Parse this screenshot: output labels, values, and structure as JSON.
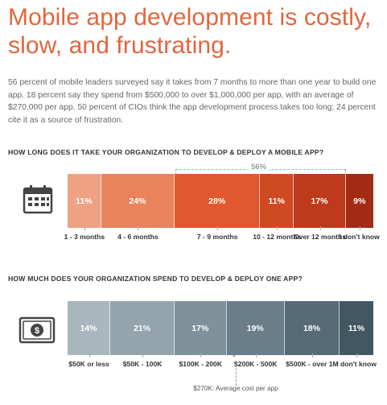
{
  "title": "Mobile app development is costly, slow, and frustrating.",
  "intro": "56 percent of mobile leaders surveyed say it takes from 7 months to more than one year to build one app. 18 percent say they spend from $500,000 to over $1,000,000 per app, with an average of $270,000 per app. 50 percent of CIOs think the app development process takes too long; 24 percent cite it as a source of frustration.",
  "icons": {
    "time": "calendar-icon",
    "cost": "money-icon"
  },
  "chart_data": [
    {
      "type": "bar",
      "orientation": "horizontal-stacked",
      "title": "HOW LONG DOES IT TAKE YOUR ORGANIZATION TO DEVELOP & DEPLOY A MOBILE APP?",
      "categories": [
        "1 - 3 months",
        "4 - 6 months",
        "7 - 9 months",
        "10 - 12 months",
        "Over 12 months",
        "I don't know"
      ],
      "values": [
        11,
        24,
        28,
        11,
        17,
        9
      ],
      "value_labels": [
        "11%",
        "24%",
        "28%",
        "11%",
        "17%",
        "9%"
      ],
      "colors": [
        "#f0a184",
        "#e9835c",
        "#e1582e",
        "#cf4923",
        "#bd3b1b",
        "#a42b13"
      ],
      "annotation": {
        "text": "56%",
        "spans": [
          "7 - 9 months",
          "10 - 12 months",
          "Over 12 months"
        ]
      }
    },
    {
      "type": "bar",
      "orientation": "horizontal-stacked",
      "title": "HOW MUCH DOES YOUR ORGANIZATION SPEND TO DEVELOP & DEPLOY ONE APP?",
      "categories": [
        "$50K or less",
        "$50K - 100K",
        "$100K - 200K",
        "$200K - 500K",
        "$500K - over 1M",
        "I don't know"
      ],
      "values": [
        14,
        21,
        17,
        19,
        18,
        11
      ],
      "value_labels": [
        "14%",
        "21%",
        "17%",
        "19%",
        "18%",
        "11%"
      ],
      "colors": [
        "#a9b6bd",
        "#93a4ad",
        "#7f919b",
        "#6a7e89",
        "#566b76",
        "#435763"
      ],
      "annotation": {
        "text": "$270K: Average cost per app",
        "marker": "*"
      }
    }
  ]
}
